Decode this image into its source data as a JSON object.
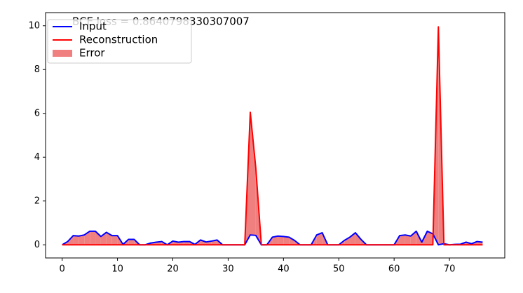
{
  "chart_data": {
    "type": "line",
    "annotation": "BCE loss = 0.8640798330307007",
    "x": [
      0,
      1,
      2,
      3,
      4,
      5,
      6,
      7,
      8,
      9,
      10,
      11,
      12,
      13,
      14,
      15,
      16,
      17,
      18,
      19,
      20,
      21,
      22,
      23,
      24,
      25,
      26,
      27,
      28,
      29,
      30,
      31,
      32,
      33,
      34,
      35,
      36,
      37,
      38,
      39,
      40,
      41,
      42,
      43,
      44,
      45,
      46,
      47,
      48,
      49,
      50,
      51,
      52,
      53,
      54,
      55,
      56,
      57,
      58,
      59,
      60,
      61,
      62,
      63,
      64,
      65,
      66,
      67,
      68,
      69,
      70,
      71,
      72,
      73,
      74,
      75,
      76
    ],
    "series": [
      {
        "name": "Input",
        "color": "#0000ff",
        "values": [
          0,
          0.15,
          0.42,
          0.4,
          0.45,
          0.62,
          0.62,
          0.38,
          0.57,
          0.42,
          0.42,
          0.02,
          0.25,
          0.25,
          0,
          0,
          0.08,
          0.12,
          0.15,
          0,
          0.17,
          0.12,
          0.15,
          0.15,
          0.02,
          0.22,
          0.13,
          0.17,
          0.22,
          0,
          0,
          0,
          0,
          0,
          0.45,
          0.43,
          0,
          0,
          0.35,
          0.4,
          0.38,
          0.35,
          0.2,
          0,
          0,
          0,
          0.45,
          0.55,
          0,
          0,
          0,
          0.2,
          0.35,
          0.55,
          0.25,
          0,
          0,
          0,
          0,
          0,
          0,
          0.42,
          0.45,
          0.4,
          0.62,
          0.12,
          0.62,
          0.5,
          0,
          0.05,
          0,
          0.02,
          0.03,
          0.12,
          0.05,
          0.15,
          0.12
        ]
      },
      {
        "name": "Reconstruction",
        "color": "#ff0000",
        "values": [
          0,
          0,
          0,
          0,
          0,
          0,
          0,
          0,
          0,
          0,
          0,
          0,
          0,
          0,
          0,
          0,
          0,
          0,
          0,
          0,
          0,
          0,
          0,
          0,
          0,
          0,
          0,
          0,
          0,
          0,
          0,
          0,
          0,
          0,
          6.05,
          3.5,
          0,
          0,
          0,
          0,
          0,
          0,
          0,
          0,
          0,
          0,
          0,
          0,
          0,
          0,
          0,
          0,
          0,
          0,
          0,
          0,
          0,
          0,
          0,
          0,
          0,
          0,
          0,
          0,
          0,
          0,
          0,
          0,
          9.95,
          0,
          0,
          0,
          0,
          0,
          0,
          0,
          0
        ]
      }
    ],
    "fill": {
      "name": "Error",
      "color": "#f08080"
    },
    "xlim": [
      -3,
      80
    ],
    "ylim": [
      -0.6,
      10.6
    ],
    "xticks": [
      0,
      10,
      20,
      30,
      40,
      50,
      60,
      70
    ],
    "yticks": [
      0,
      2,
      4,
      6,
      8,
      10
    ],
    "legend": "upper left"
  }
}
